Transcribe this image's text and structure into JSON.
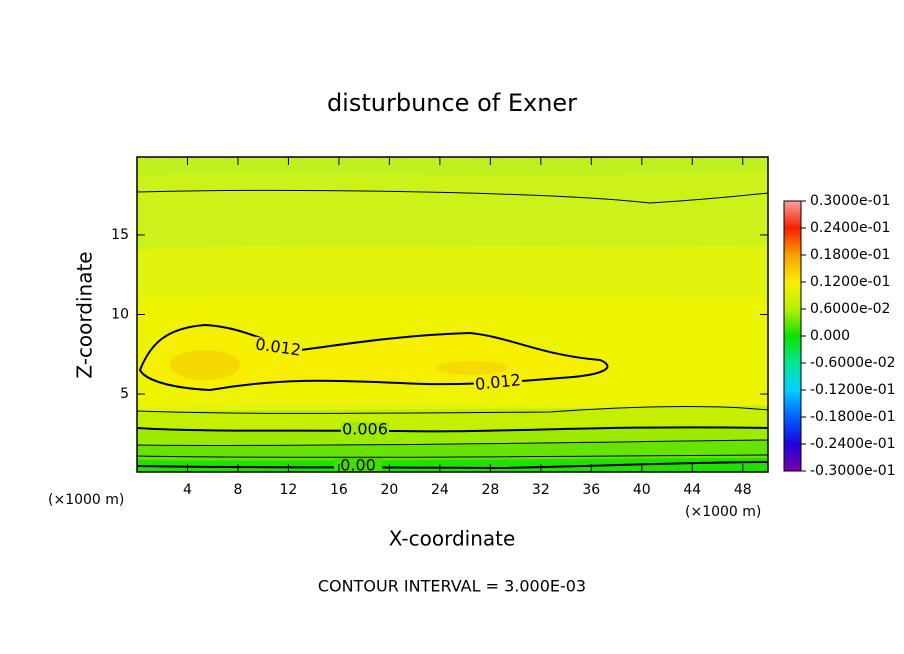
{
  "chart_data": {
    "type": "contour",
    "title": "disturbunce of Exner",
    "x_label": "X-coordinate",
    "y_label": "Z-coordinate",
    "x_unit": "(×1000 m)",
    "footnote": "CONTOUR INTERVAL = 3.000E-03",
    "xlim": [
      0,
      50
    ],
    "xticks": [
      4,
      8,
      12,
      16,
      20,
      24,
      28,
      32,
      36,
      40,
      44,
      48
    ],
    "ylim": [
      0.1,
      19.9
    ],
    "yticks": [
      5,
      10,
      15
    ],
    "contours": [
      {
        "value": 0.012,
        "label": "0.012"
      },
      {
        "value": 0.006,
        "label": "0.006"
      },
      {
        "value": 0,
        "label": "0.00"
      }
    ],
    "colorbar": {
      "clim": [
        -0.03,
        0.03
      ],
      "colors": [
        "#7a00a8",
        "#2000e0",
        "#0060ff",
        "#00d0ff",
        "#00e890",
        "#10e000",
        "#b8f000",
        "#f8f000",
        "#f8a000",
        "#f82000",
        "#f8a0a0"
      ],
      "ticks": [
        {
          "value": 0.03,
          "label": "0.3000e-01"
        },
        {
          "value": 0.024,
          "label": "0.2400e-01"
        },
        {
          "value": 0.018,
          "label": "0.1800e-01"
        },
        {
          "value": 0.012,
          "label": "0.1200e-01"
        },
        {
          "value": 0.006,
          "label": "0.6000e-02"
        },
        {
          "value": 0,
          "label": "0.000"
        },
        {
          "value": -0.006,
          "label": "-0.6000e-02"
        },
        {
          "value": -0.012,
          "label": "-0.1200e-01"
        },
        {
          "value": -0.018,
          "label": "-0.1800e-01"
        },
        {
          "value": -0.024,
          "label": "-0.2400e-01"
        },
        {
          "value": -0.03,
          "label": "-0.3000e-01"
        }
      ]
    }
  }
}
